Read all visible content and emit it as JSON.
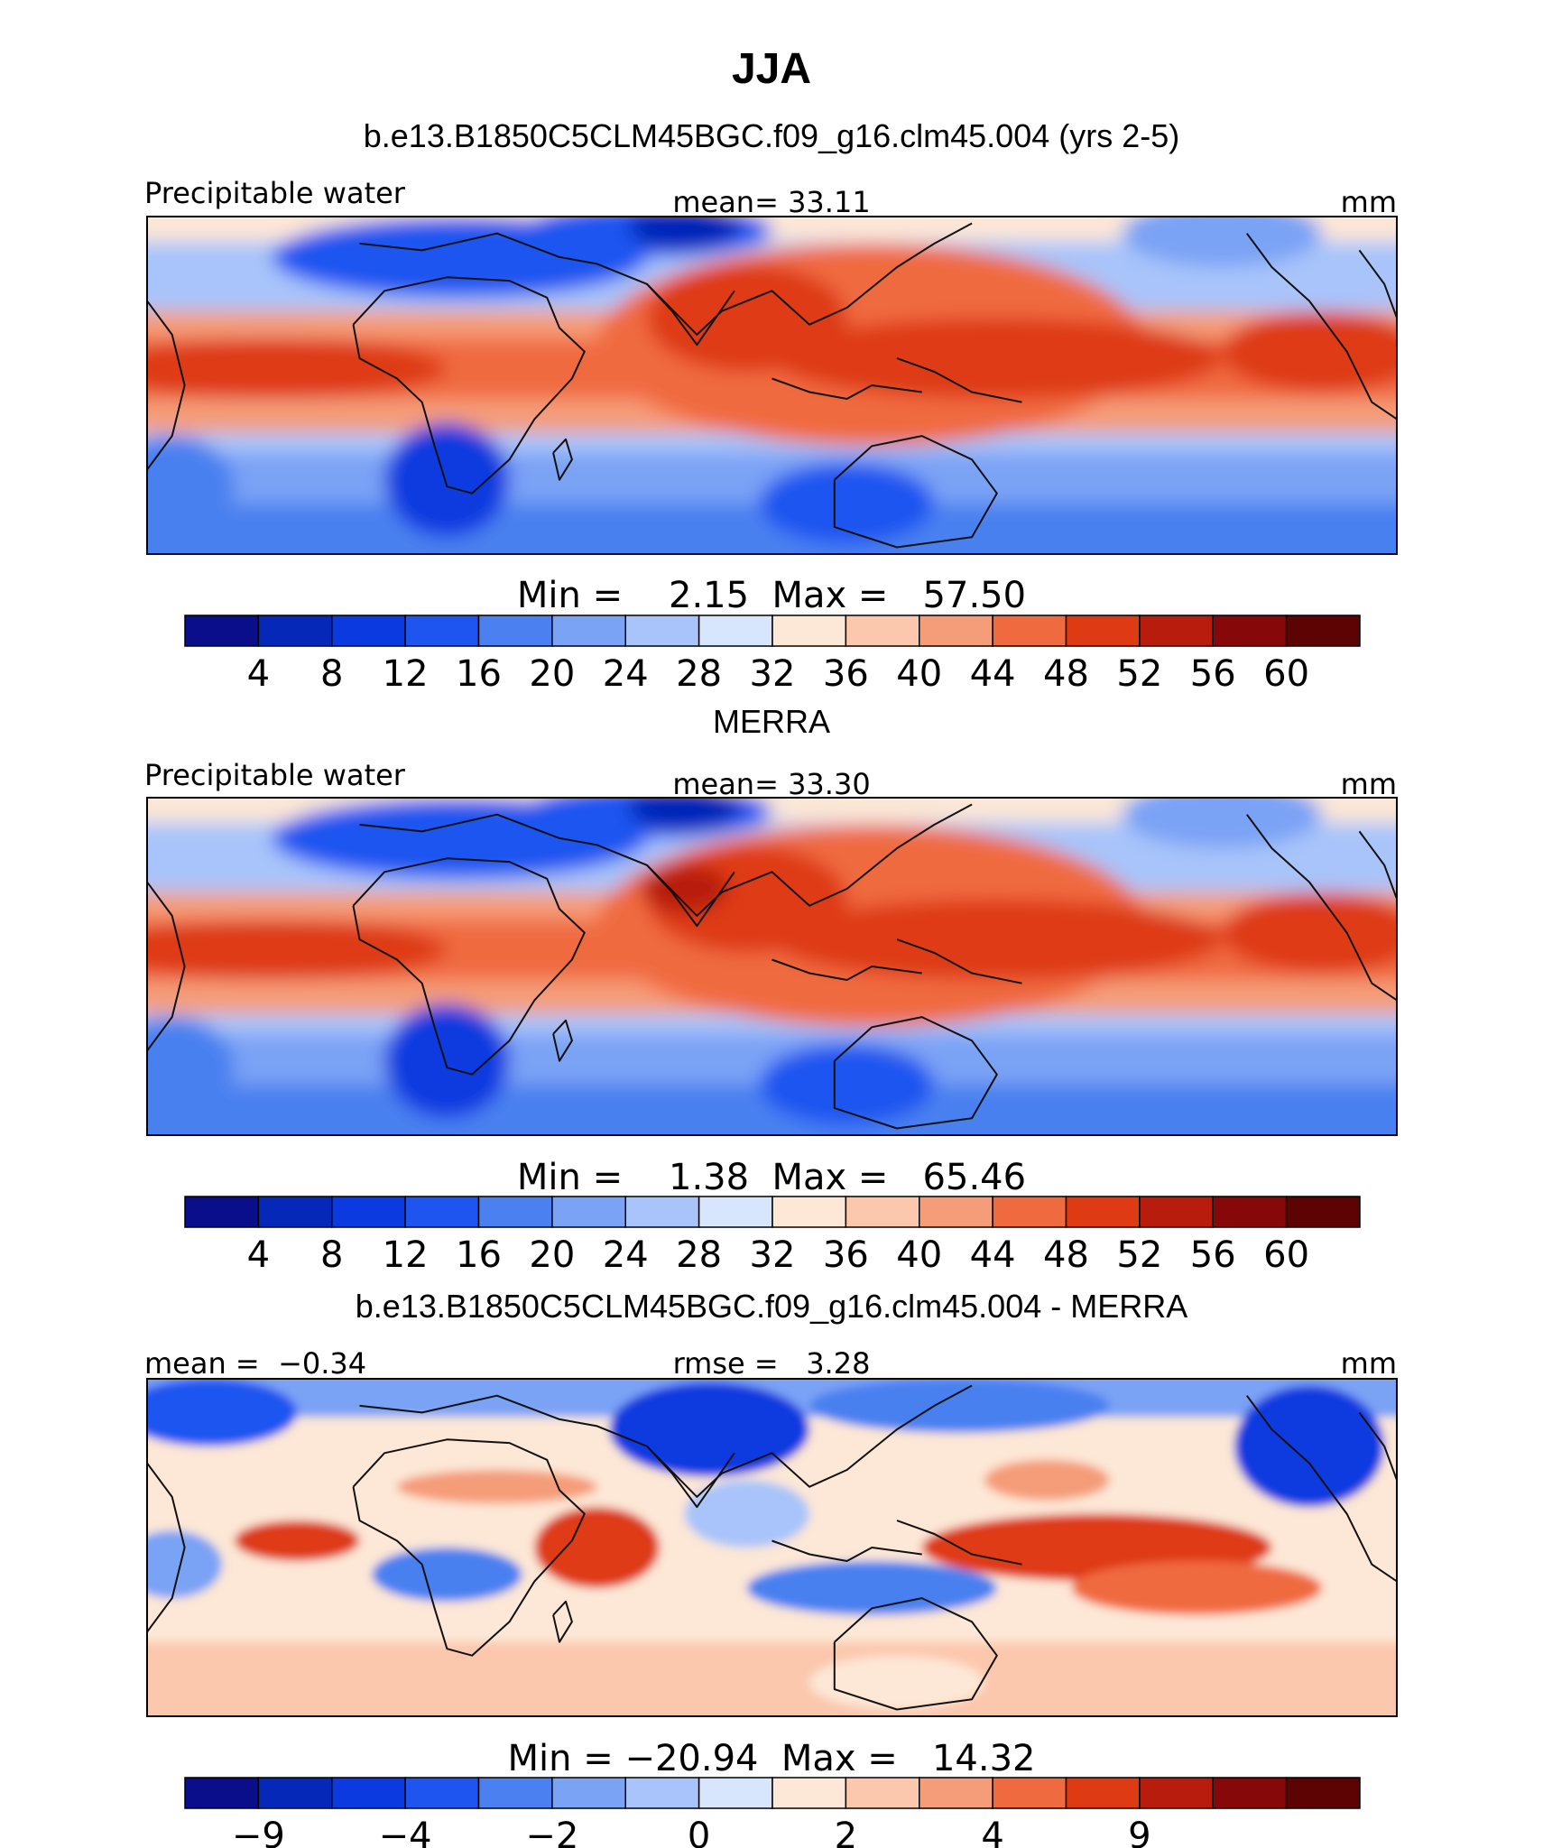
{
  "figure": {
    "title": "JJA"
  },
  "panels": [
    {
      "id": "model",
      "subtitle": "b.e13.B1850C5CLM45BGC.f09_g16.clm45.004 (yrs 2-5)",
      "left_label": "Precipitable water",
      "center_label": "mean=  33.11",
      "right_label": "mm",
      "minmax_label": "Min =    2.15  Max =   57.50",
      "type": "map-dipole",
      "field": "tpw"
    },
    {
      "id": "obs",
      "subtitle": "MERRA",
      "left_label": "Precipitable water",
      "center_label": "mean=  33.30",
      "right_label": "mm",
      "minmax_label": "Min =    1.38  Max =   65.46",
      "type": "map",
      "field": "tpw"
    },
    {
      "id": "diff",
      "subtitle": "b.e13.B1850C5CLM45BGC.f09_g16.clm45.004 - MERRA",
      "left_label": "mean =  −0.34",
      "center_label": "rmse =   3.28",
      "right_label": "mm",
      "minmax_label": "Min = −20.94  Max =   14.32",
      "type": "map",
      "field": "diff"
    }
  ],
  "chart_data": [
    {
      "type": "heatmap",
      "title": "JJA",
      "subtitle": "b.e13.B1850C5CLM45BGC.f09_g16.clm45.004 (yrs 2-5)",
      "variable": "Precipitable water",
      "units": "mm",
      "mean": 33.11,
      "min": 2.15,
      "max": 57.5,
      "colorbar_ticks": [
        "4",
        "8",
        "12",
        "16",
        "20",
        "24",
        "28",
        "32",
        "36",
        "40",
        "44",
        "48",
        "52",
        "56",
        "60"
      ],
      "colorbar_colors": [
        "#0a0e8a",
        "#0628b8",
        "#0a3ae0",
        "#1e55f0",
        "#4a80f0",
        "#7aa2f5",
        "#a8c4fa",
        "#d8e6fd",
        "#fde7d6",
        "#fbc8ad",
        "#f59c78",
        "#f06a40",
        "#de3a14",
        "#b81c0c",
        "#870808",
        "#5e0303"
      ]
    },
    {
      "type": "heatmap",
      "title": "MERRA",
      "variable": "Precipitable water",
      "units": "mm",
      "mean": 33.3,
      "min": 1.38,
      "max": 65.46,
      "colorbar_ticks": [
        "4",
        "8",
        "12",
        "16",
        "20",
        "24",
        "28",
        "32",
        "36",
        "40",
        "44",
        "48",
        "52",
        "56",
        "60"
      ],
      "colorbar_colors": [
        "#0a0e8a",
        "#0628b8",
        "#0a3ae0",
        "#1e55f0",
        "#4a80f0",
        "#7aa2f5",
        "#a8c4fa",
        "#d8e6fd",
        "#fde7d6",
        "#fbc8ad",
        "#f59c78",
        "#f06a40",
        "#de3a14",
        "#b81c0c",
        "#870808",
        "#5e0303"
      ]
    },
    {
      "type": "heatmap",
      "title": "b.e13.B1850C5CLM45BGC.f09_g16.clm45.004 - MERRA",
      "units": "mm",
      "mean": -0.34,
      "rmse": 3.28,
      "min": -20.94,
      "max": 14.32,
      "colorbar_ticks": [
        "−9",
        "",
        "−4",
        "",
        "−2",
        "",
        "0",
        "",
        "2",
        "",
        "4",
        "",
        "9"
      ],
      "colorbar_colors": [
        "#0a0e8a",
        "#0628b8",
        "#0a3ae0",
        "#1e55f0",
        "#4a80f0",
        "#7aa2f5",
        "#a8c4fa",
        "#d8e6fd",
        "#fde7d6",
        "#fbc8ad",
        "#f59c78",
        "#f06a40",
        "#de3a14",
        "#b81c0c",
        "#870808",
        "#5e0303"
      ]
    }
  ]
}
